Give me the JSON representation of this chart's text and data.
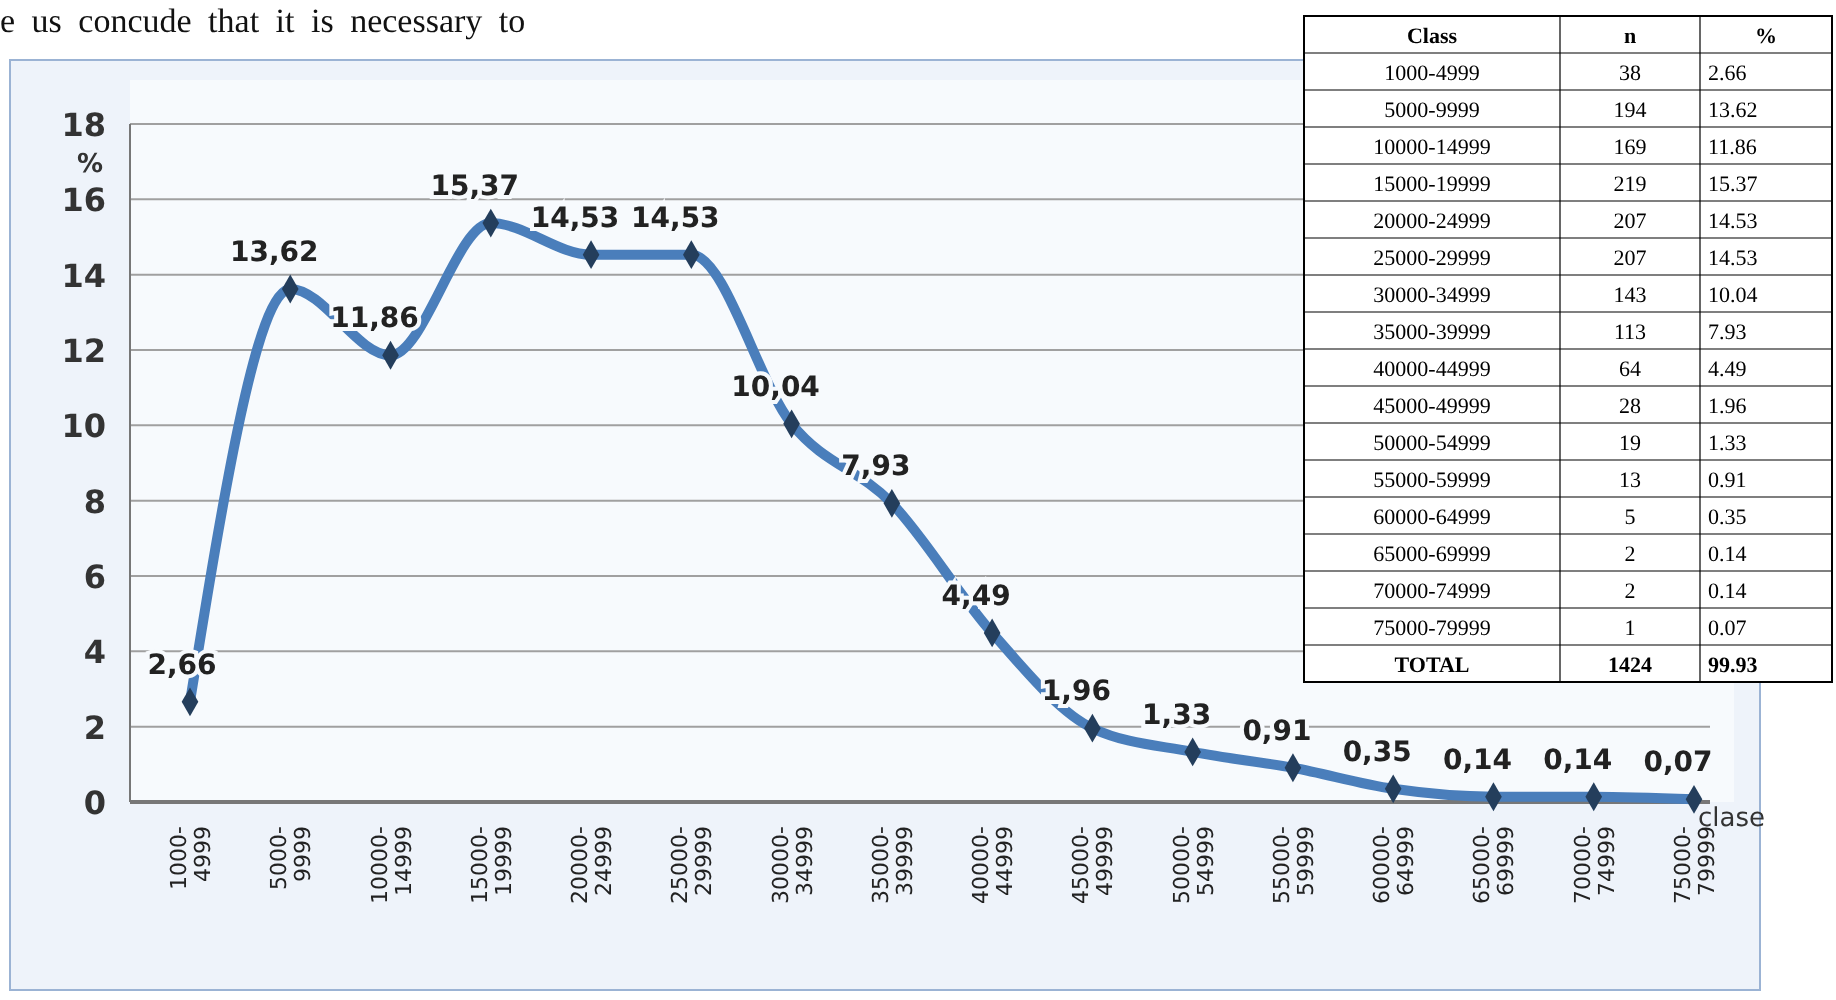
{
  "chart_data": [
    {
      "type": "line",
      "ylabel": "%",
      "xlabel": "clase",
      "annotations": [
        "e us concude that it is necessary to"
      ],
      "categories": [
        "1000-\n4999",
        "5000-\n9999",
        "10000-\n14999",
        "15000-\n19999",
        "20000-\n24999",
        "25000-\n29999",
        "30000-\n34999",
        "35000-\n39999",
        "40000-\n44999",
        "45000-\n49999",
        "50000-\n54999",
        "55000-\n59999",
        "60000-\n64999",
        "65000-\n69999",
        "70000-\n74999",
        "75000-\n79999"
      ],
      "series": [
        {
          "color": "#4a7ebb",
          "values": [
            2.66,
            13.62,
            11.86,
            15.37,
            14.53,
            14.53,
            10.04,
            7.93,
            4.49,
            1.96,
            1.33,
            0.91,
            0.35,
            0.14,
            0.14,
            0.07
          ],
          "value_labels": [
            "2,66",
            "13,62",
            "11,86",
            "15,37",
            "14,53",
            "14,53",
            "10,04",
            "7,93",
            "4,49",
            "1,96",
            "1,33",
            "0,91",
            "0,35",
            "0,14",
            "0,14",
            "0,07"
          ]
        }
      ],
      "ylim": [
        0,
        18
      ],
      "yticks": [
        0,
        2,
        4,
        6,
        8,
        10,
        12,
        14,
        16,
        18
      ],
      "grid": "y",
      "marker": "diamond",
      "line_style": "solid"
    },
    {
      "type": "other",
      "xlabel": "Class",
      "data_labels": true,
      "categories": [
        "1000-4999",
        "5000-9999",
        "10000-14999",
        "15000-19999",
        "20000-24999",
        "25000-29999",
        "30000-34999",
        "35000-39999",
        "40000-44999",
        "45000-49999",
        "50000-54999",
        "55000-59999",
        "60000-64999",
        "65000-69999",
        "70000-74999",
        "75000-79999"
      ],
      "series": [
        {
          "name": "n",
          "values": [
            38,
            194,
            169,
            219,
            207,
            207,
            143,
            113,
            64,
            28,
            19,
            13,
            5,
            2,
            2,
            1
          ]
        },
        {
          "name": "%",
          "values": [
            2.66,
            13.62,
            11.86,
            15.37,
            14.53,
            14.53,
            10.04,
            7.93,
            4.49,
            1.96,
            1.33,
            0.91,
            0.35,
            0.14,
            0.14,
            0.07
          ]
        }
      ],
      "totals": [
        "TOTAL",
        "1424",
        "99.93"
      ]
    }
  ]
}
